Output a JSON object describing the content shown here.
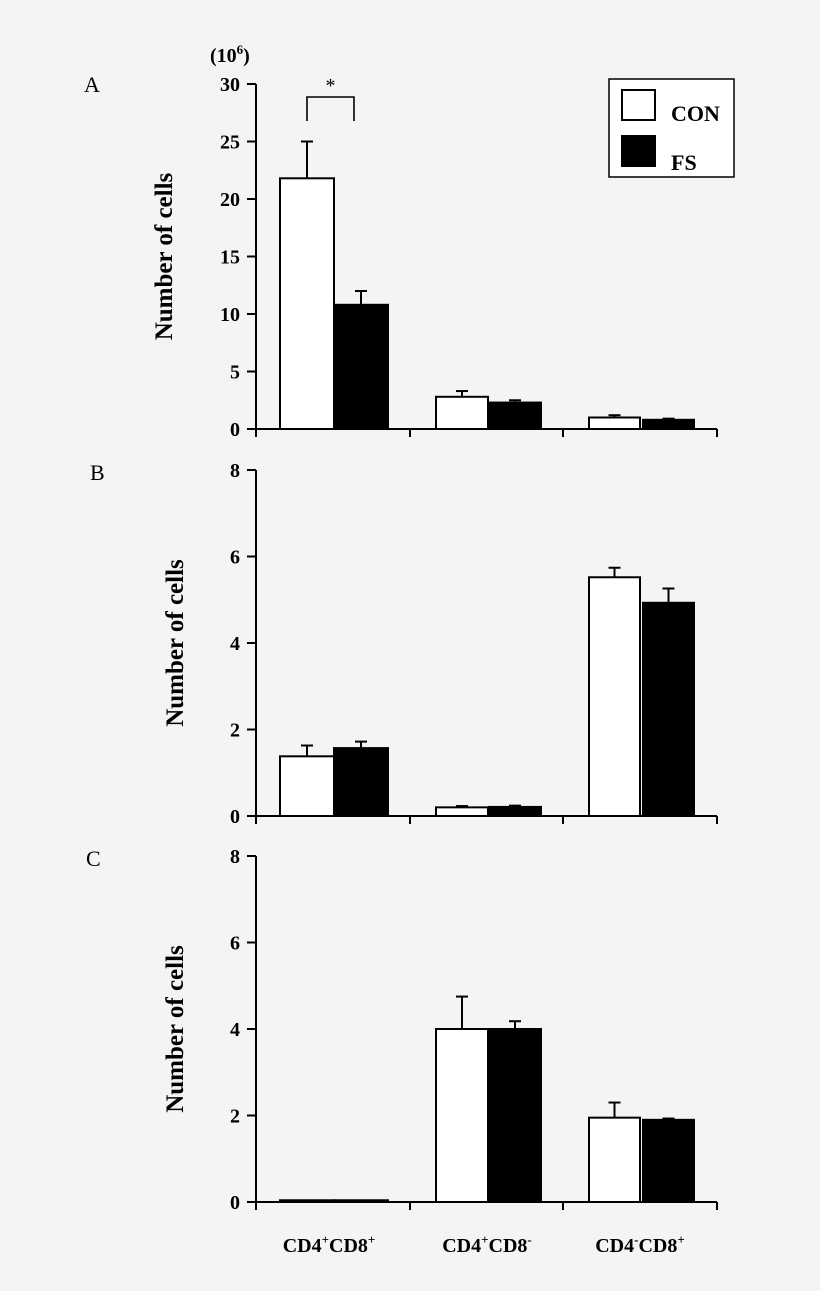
{
  "chart_data": [
    {
      "type": "bar",
      "panel": "A",
      "ylabel": "Number of cells",
      "unit": "(10⁶)",
      "ylim": [
        0,
        30
      ],
      "yticks": [
        0,
        5,
        10,
        15,
        20,
        25,
        30
      ],
      "categories": [
        "CD4⁺CD8⁺",
        "CD4⁺CD8⁻",
        "CD4⁻CD8⁺"
      ],
      "series": [
        {
          "name": "CON",
          "color": "#ffffff",
          "values": [
            21.8,
            2.8,
            1.0
          ],
          "errors": [
            3.2,
            0.5,
            0.2
          ]
        },
        {
          "name": "FS",
          "color": "#000000",
          "values": [
            10.8,
            2.3,
            0.8
          ],
          "errors": [
            1.2,
            0.2,
            0.1
          ]
        }
      ],
      "significance": {
        "symbol": "*",
        "category": 0
      },
      "legend": "top-right"
    },
    {
      "type": "bar",
      "panel": "B",
      "ylabel": "Number of cells",
      "ylim": [
        0,
        8
      ],
      "yticks": [
        0,
        2,
        4,
        6,
        8
      ],
      "categories": [
        "CD4⁺CD8⁺",
        "CD4⁺CD8⁻",
        "CD4⁻CD8⁺"
      ],
      "series": [
        {
          "name": "CON",
          "color": "#ffffff",
          "values": [
            1.38,
            0.2,
            5.52
          ],
          "errors": [
            0.25,
            0.03,
            0.22
          ]
        },
        {
          "name": "FS",
          "color": "#000000",
          "values": [
            1.57,
            0.21,
            4.93
          ],
          "errors": [
            0.15,
            0.03,
            0.33
          ]
        }
      ]
    },
    {
      "type": "bar",
      "panel": "C",
      "ylabel": "Number of cells",
      "ylim": [
        0,
        8
      ],
      "yticks": [
        0,
        2,
        4,
        6,
        8
      ],
      "categories": [
        "CD4⁺CD8⁺",
        "CD4⁺CD8⁻",
        "CD4⁻CD8⁺"
      ],
      "series": [
        {
          "name": "CON",
          "color": "#ffffff",
          "values": [
            0.04,
            4.0,
            1.95
          ],
          "errors": [
            0,
            0.75,
            0.35
          ]
        },
        {
          "name": "FS",
          "color": "#000000",
          "values": [
            0.04,
            4.0,
            1.9
          ],
          "errors": [
            0,
            0.18,
            0.03
          ]
        }
      ]
    }
  ],
  "category_labels": [
    {
      "base": "CD4",
      "sup1": "+",
      "mid": "CD8",
      "sup2": "+"
    },
    {
      "base": "CD4",
      "sup1": "+",
      "mid": "CD8",
      "sup2": "-"
    },
    {
      "base": "CD4",
      "sup1": "-",
      "mid": "CD8",
      "sup2": "+"
    }
  ],
  "unit_label": {
    "open": "(10",
    "exp": "6",
    "close": ")"
  }
}
